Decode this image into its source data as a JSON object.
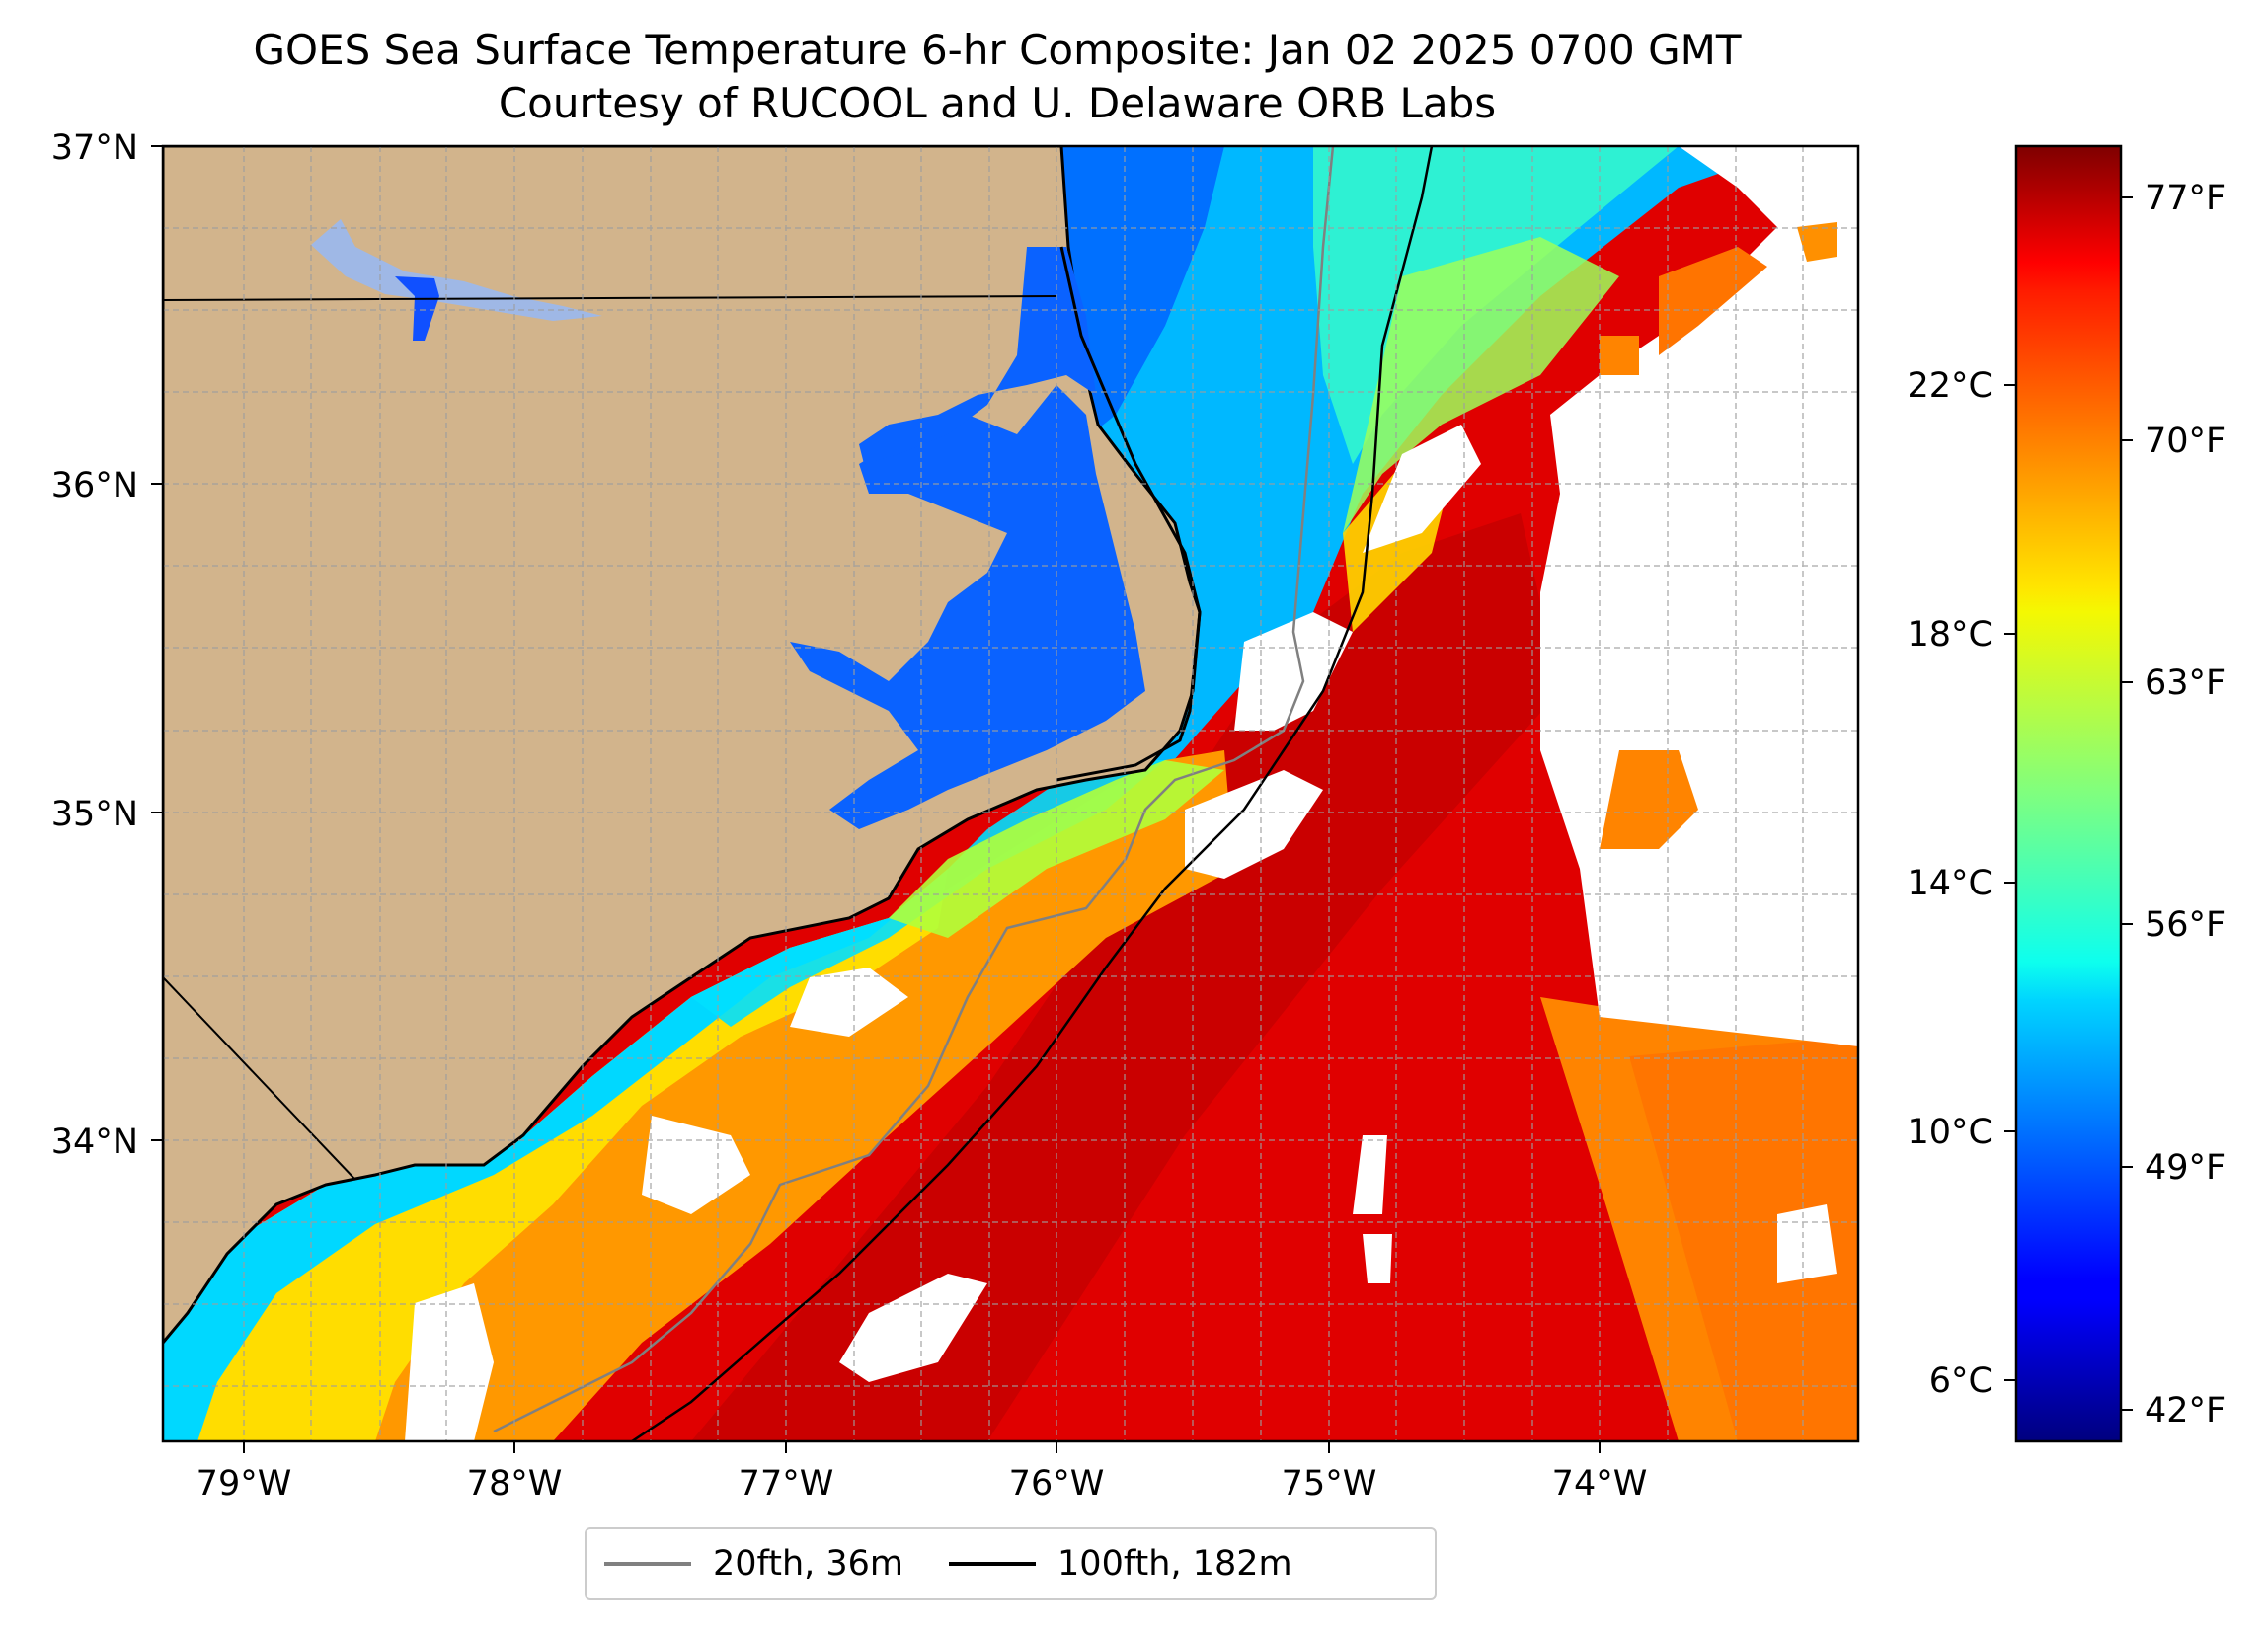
{
  "title": "GOES Sea Surface Temperature 6-hr Composite: Jan 02 2025 0700 GMT",
  "subtitle": "Courtesy of RUCOOL and U. Delaware ORB Labs",
  "map": {
    "lat_labels": [
      "37°N",
      "36°N",
      "35°N",
      "34°N"
    ],
    "lon_labels": [
      "79°W",
      "78°W",
      "77°W",
      "76°W",
      "75°W",
      "74°W"
    ],
    "extent": {
      "lon_min": -79.3,
      "lon_max": -73.05,
      "lat_min": 33.05,
      "lat_max": 37.0
    },
    "colors": {
      "land": "#d2b48c",
      "cloud_mask": "#ffffff",
      "gridline": "#9e9e9e"
    }
  },
  "colorbar": {
    "celsius_labels": [
      "22°C",
      "18°C",
      "14°C",
      "10°C",
      "6°C"
    ],
    "fahrenheit_labels": [
      "77°F",
      "70°F",
      "63°F",
      "56°F",
      "49°F",
      "42°F"
    ],
    "colormap": "jet",
    "range_f": [
      40,
      78
    ]
  },
  "legend": {
    "items": [
      {
        "label": "20fth, 36m",
        "color": "#808080"
      },
      {
        "label": "100fth, 182m",
        "color": "#000000"
      }
    ]
  }
}
